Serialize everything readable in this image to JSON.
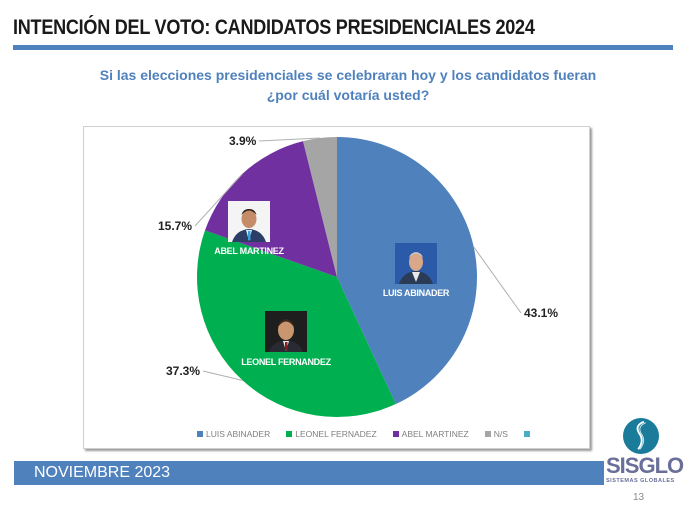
{
  "header": {
    "title": "INTENCIÓN DEL VOTO: CANDIDATOS PRESIDENCIALES 2024",
    "subtitle_line1": "Si las elecciones presidenciales se celebraran hoy y los candidatos fueran",
    "subtitle_line2": "¿por cuál votaría usted?"
  },
  "chart_data": {
    "type": "pie",
    "title": "Si las elecciones presidenciales se celebraran hoy y los candidatos fueran ¿por cuál votaría usted?",
    "categories": [
      "LUIS ABINADER",
      "LEONEL FERNADEZ",
      "ABEL MARTINEZ",
      "N/S"
    ],
    "values": [
      43.1,
      37.3,
      15.7,
      3.9
    ],
    "labels": [
      "43.1%",
      "37.3%",
      "15.7%",
      "3.9%"
    ],
    "slice_names": [
      "LUIS ABINADER",
      "LEONEL FERNANDEZ",
      "ABEL MARTINEZ",
      ""
    ],
    "colors": [
      "#4f81bd",
      "#00b050",
      "#7030a0",
      "#a5a5a5"
    ],
    "legend": {
      "position": "bottom",
      "entries": [
        {
          "label": "LUIS ABINADER",
          "color": "#4f81bd"
        },
        {
          "label": "LEONEL FERNADEZ",
          "color": "#00b050"
        },
        {
          "label": "ABEL MARTINEZ",
          "color": "#7030a0"
        },
        {
          "label": "N/S",
          "color": "#a5a5a5"
        },
        {
          "label": "",
          "color": "#4bacc6"
        }
      ]
    },
    "start": "top",
    "direction": "clockwise"
  },
  "footer": {
    "date": "NOVIEMBRE  2023",
    "logo_name": "SISGLO",
    "logo_tagline": "SISTEMAS GLOBALES",
    "page_number": "13"
  },
  "colors": {
    "accent": "#4f81bd",
    "logo": "#1a7b9a"
  }
}
